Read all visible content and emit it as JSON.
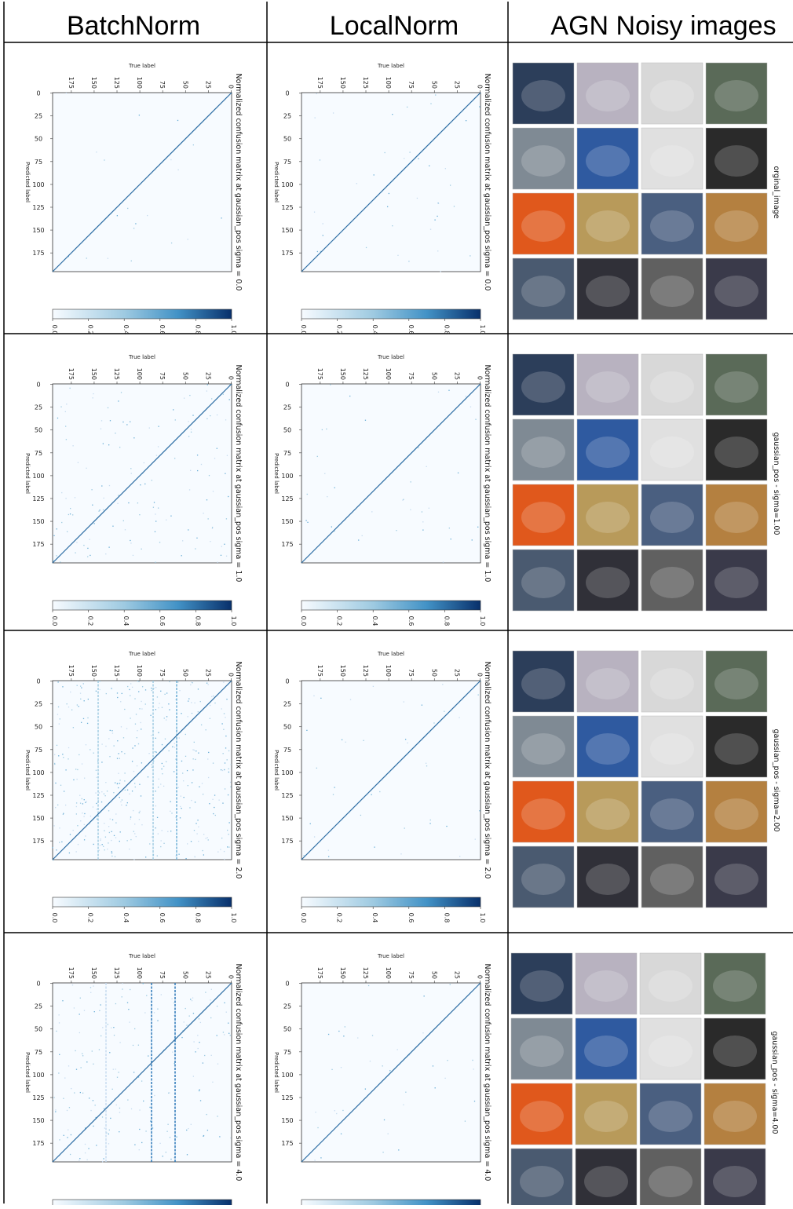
{
  "header": {
    "columns": [
      "BatchNorm",
      "LocalNorm",
      "AGN Noisy images"
    ]
  },
  "axis": {
    "ticks": [
      "0",
      "25",
      "50",
      "75",
      "100",
      "125",
      "150",
      "175"
    ],
    "x_label": "Predicted label",
    "y_label": "True label",
    "colorbar_ticks": [
      "0.0",
      "0.2",
      "0.4",
      "0.6",
      "0.8",
      "1.0"
    ]
  },
  "rows": [
    {
      "batchnorm_title": "Normalized confusion matrix at gaussian_pos sigma = 0.0",
      "localnorm_title": "Normalized confusion matrix at gaussian_pos sigma = 0.0",
      "image_label": "orginal_image"
    },
    {
      "batchnorm_title": "Normalized confusion matrix at gaussian_pos sigma = 1.0",
      "localnorm_title": "Normalized confusion matrix at gaussian_pos sigma = 1.0",
      "image_label": "gaussian_pos - sigma=1.00"
    },
    {
      "batchnorm_title": "Normalized confusion matrix at gaussian_pos sigma = 2.0",
      "localnorm_title": "Normalized confusion matrix at gaussian_pos sigma = 2.0",
      "image_label": "gaussian_pos - sigma=2.00"
    },
    {
      "batchnorm_title": "Normalized confusion matrix at gaussian_pos sigma = 4.0",
      "localnorm_title": "Normalized confusion matrix at gaussian_pos sigma = 4.0",
      "image_label": "gaussian_pos - sigma=4.00"
    }
  ]
}
